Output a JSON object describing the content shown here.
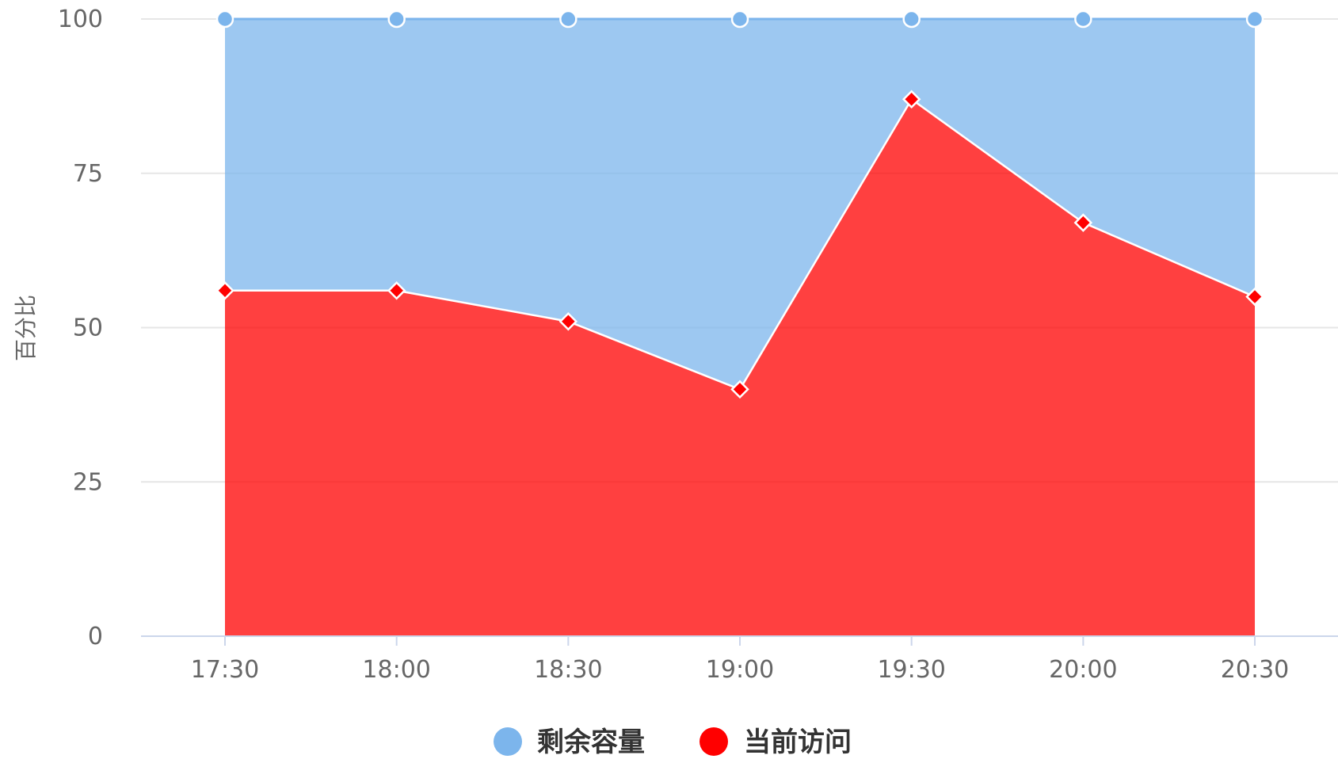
{
  "chart_data": {
    "type": "area",
    "stacking": "percent",
    "categories": [
      "17:30",
      "18:00",
      "18:30",
      "19:00",
      "19:30",
      "20:00",
      "20:30"
    ],
    "ylabel": "百分比",
    "ylim": [
      0,
      100
    ],
    "yticks": [
      "0",
      "25",
      "50",
      "75",
      "100"
    ],
    "grid": true,
    "legend_position": "bottom",
    "series": [
      {
        "name": "剩余容量",
        "values": [
          44,
          44,
          49,
          60,
          13,
          33,
          45
        ],
        "color": "#7cb5ec",
        "marker": "circle"
      },
      {
        "name": "当前访问",
        "values": [
          56,
          56,
          51,
          40,
          87,
          67,
          55
        ],
        "color": "#ff0000",
        "marker": "diamond"
      }
    ]
  }
}
